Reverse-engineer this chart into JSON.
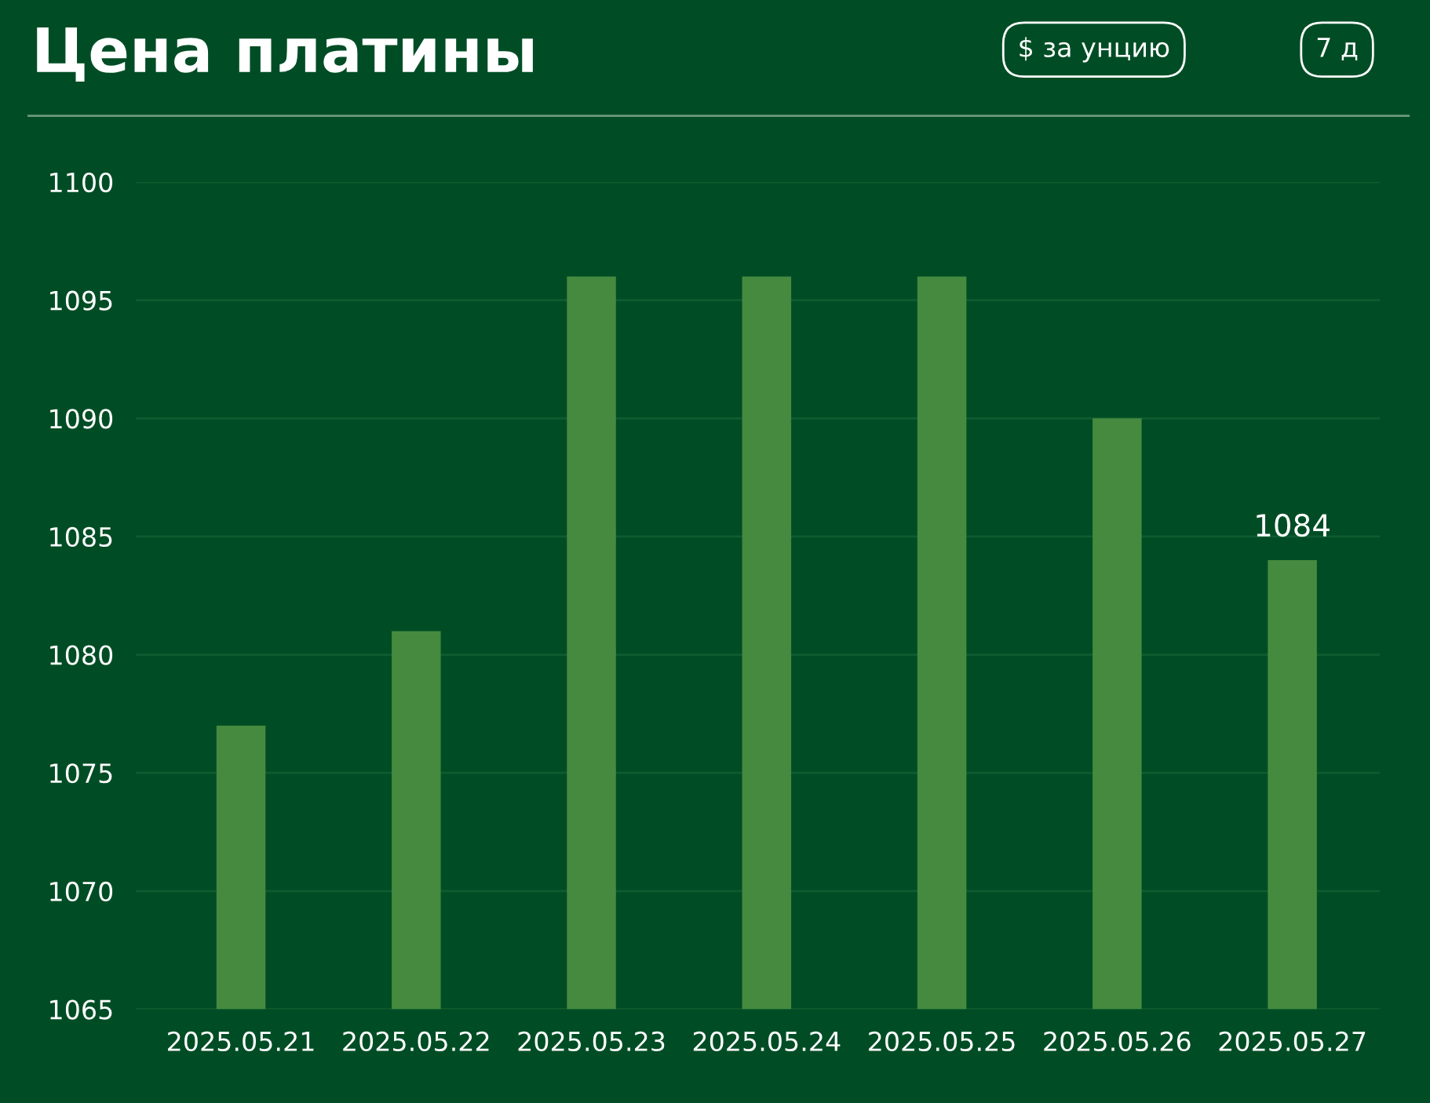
{
  "chart_data": {
    "type": "bar",
    "title": "Цена платины",
    "annotations": [
      "$ за унцию",
      "7 д"
    ],
    "categories": [
      "2025.05.21",
      "2025.05.22",
      "2025.05.23",
      "2025.05.24",
      "2025.05.25",
      "2025.05.26",
      "2025.05.27"
    ],
    "values": [
      1077,
      1081,
      1096,
      1096,
      1096,
      1090,
      1084
    ],
    "value_labels": [
      null,
      null,
      null,
      null,
      null,
      null,
      "1084"
    ],
    "color": "#458a3f",
    "ylim": [
      1065,
      1100
    ],
    "yticks": [
      1065,
      1070,
      1075,
      1080,
      1085,
      1090,
      1095,
      1100
    ],
    "grid": "y"
  }
}
